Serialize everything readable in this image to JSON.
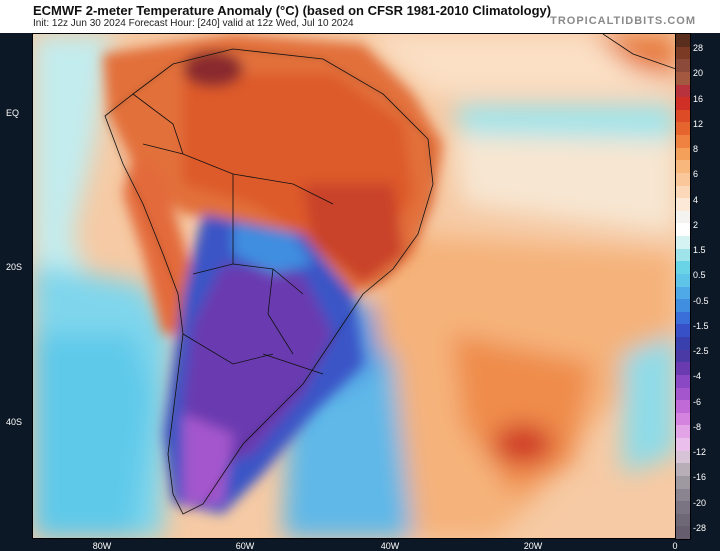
{
  "header": {
    "title": "ECMWF 2-meter Temperature Anomaly (°C) (based on CFSR 1981-2010 Climatology)",
    "subtitle": "Init: 12z Jun 30 2024   Forecast Hour: [240]   valid at 12z Wed, Jul 10 2024",
    "brand": "TROPICALTIDBITS.COM"
  },
  "map": {
    "lat_labels": [
      "EQ",
      "20S",
      "40S"
    ],
    "lon_labels": [
      "80W",
      "60W",
      "40W",
      "20W",
      "0"
    ],
    "region": "South America and South Atlantic"
  },
  "colorbar": {
    "labels": [
      "28",
      "20",
      "16",
      "12",
      "8",
      "6",
      "4",
      "2",
      "1.5",
      "0.5",
      "-0.5",
      "-1.5",
      "-2.5",
      "-4",
      "-6",
      "-8",
      "-12",
      "-16",
      "-20",
      "-28"
    ],
    "colors": [
      "#5a2e1c",
      "#7a3a24",
      "#8c4a3a",
      "#a3583f",
      "#b8323e",
      "#cf2f24",
      "#dc4a26",
      "#e6652e",
      "#ef8240",
      "#f5a05a",
      "#f7b77d",
      "#f9c79a",
      "#fbd8b8",
      "#fde9d8",
      "#f5f3f0",
      "#ffffff",
      "#d6f3f3",
      "#9ee4ea",
      "#68d4e6",
      "#5ec5e8",
      "#4fa9e6",
      "#3f8ee0",
      "#3a6ed8",
      "#3750c8",
      "#3a3fae",
      "#4a3aa6",
      "#6a3ab0",
      "#8a48c4",
      "#a456cc",
      "#bf6ad6",
      "#d484de",
      "#e2a4e6",
      "#eabfec",
      "#d6c4d6",
      "#b7aeb8",
      "#9e98a0",
      "#8a8490",
      "#7a7482",
      "#6e6776",
      "#665e6e"
    ]
  }
}
